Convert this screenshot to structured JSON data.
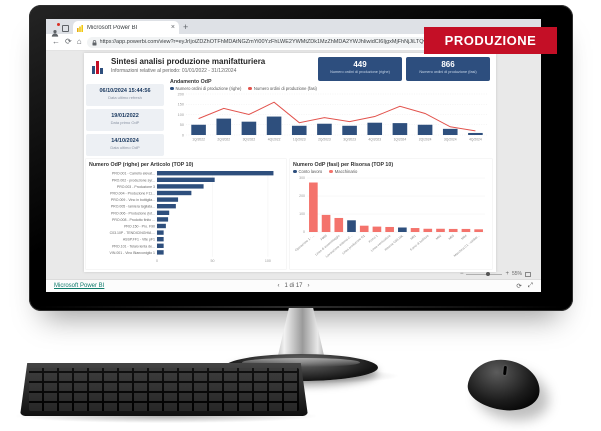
{
  "overlay": {
    "badge": "PRODUZIONE"
  },
  "browser": {
    "tab_title": "Microsoft Power BI",
    "url": "https://app.powerbi.com/view?r=eyJrIjoiZDZhOTFhMDAtNGZmYi00YzFhLWE2YWMtZDk1MzZhMDA2YWJhIiwidCI6IjgxMjFhNjJiLTQwNGEtNDBkZS1hZTZlLTZlMjU1ZDVlZjliNyJ9"
  },
  "icons": {
    "close": "×",
    "add": "+",
    "back": "←",
    "reload": "⟳",
    "home": "⌂",
    "prev": "‹",
    "next": "›",
    "minus": "−",
    "plus": "+",
    "refresh": "⟳",
    "fullscreen": "⤢"
  },
  "viewer": {
    "status_link": "Microsoft Power BI",
    "page_indicator": "1 di 17",
    "zoom_level": "55%"
  },
  "report": {
    "title": "Sintesi analisi produzione manifatturiera",
    "subtitle": "Informazioni relative al periodo: 01/01/2022 - 31/12/2024",
    "kpis": [
      {
        "value": "449",
        "label": "Numero ordini di produzione (righe)"
      },
      {
        "value": "866",
        "label": "Numero ordini di produzione (fasi)"
      }
    ],
    "date_cards": [
      {
        "value": "06/10/2024 15:44:56",
        "label": "Data ultimo refresh"
      },
      {
        "value": "19/01/2022",
        "label": "Data primo OdP"
      },
      {
        "value": "14/10/2024",
        "label": "Data ultimo OdP"
      }
    ],
    "accent_colors": {
      "navy": "#2e4f7d",
      "line_red": "#e2524c",
      "salmon": "#f4736c",
      "banner_red": "#c40f26"
    }
  },
  "chart_data": [
    {
      "type": "bar",
      "title": "Andamento OdP",
      "categories": [
        "1Q/2022",
        "2Q/2022",
        "3Q/2022",
        "4Q/2022",
        "1Q/2023",
        "2Q/2023",
        "3Q/2023",
        "4Q/2023",
        "1Q/2024",
        "2Q/2024",
        "3Q/2024",
        "4Q/2024"
      ],
      "series": [
        {
          "name": "Numero ordini di produzione (righe)",
          "type": "bar",
          "color": "#2e4f7d",
          "values": [
            50,
            80,
            65,
            90,
            45,
            55,
            45,
            60,
            58,
            50,
            30,
            10
          ]
        },
        {
          "name": "Numero ordini di produzione (fasi)",
          "type": "line",
          "color": "#e2524c",
          "values": [
            80,
            130,
            100,
            160,
            60,
            85,
            65,
            90,
            140,
            105,
            40,
            20
          ]
        }
      ],
      "ylim": [
        0,
        200
      ],
      "yticks": [
        0,
        50,
        100,
        150,
        200
      ],
      "grid": true,
      "legend_position": "top"
    },
    {
      "type": "bar",
      "orientation": "horizontal",
      "title": "Numero OdP (righe) per Articolo (TOP 10)",
      "categories": [
        "PRO.001 - Carrello elevat...",
        "PRO.002 - produzione syr...",
        "PRO.003 - Produzione 3",
        "PRO.004 - Produzione F11...",
        "PRO.009 - Vino in bottiglia...",
        "PRO.005 - lamiera tagliata...",
        "PRO.006 - Produzione (lot...",
        "PRO.008 - Prodotto finito ...",
        "PRO.150 - Pro. F90",
        "C03.10P - TENDICINGHIA ...",
        "ASSP.FF1 - Vite pF1",
        "PRO.101 - Telaio lenta de...",
        "VIN.001 - Vino Bianconiglio 1"
      ],
      "values": [
        105,
        52,
        42,
        31,
        19,
        17,
        11,
        10,
        8,
        6,
        6,
        6,
        6
      ],
      "color": "#2e4f7d",
      "xlim": [
        0,
        110
      ],
      "xticks": [
        0,
        50,
        100
      ],
      "grid": true
    },
    {
      "type": "bar",
      "title": "Numero OdP (fasi) per Risorsa (TOP 10)",
      "legend": [
        "Conto lavoro",
        "Macchinario"
      ],
      "colors": {
        "Conto lavoro": "#2e4f7d",
        "Macchinario": "#f4736c"
      },
      "categories": [
        "Operazione 1 - ...",
        "F009",
        "Linea di assemblaggio",
        "Lavorazione esterna C...",
        "Linea produzione G1",
        "Forno 1",
        "Linea verniciatura",
        "Risorsa C03.10L",
        "M01",
        "Forno di bollitura",
        "M02",
        "M03",
        "M04",
        "Macchina C1 - saldatr..."
      ],
      "values": [
        275,
        95,
        78,
        65,
        35,
        30,
        28,
        25,
        22,
        18,
        18,
        17,
        17,
        15
      ],
      "bar_series": [
        "Macchinario",
        "Macchinario",
        "Macchinario",
        "Conto lavoro",
        "Macchinario",
        "Macchinario",
        "Macchinario",
        "Conto lavoro",
        "Macchinario",
        "Macchinario",
        "Macchinario",
        "Macchinario",
        "Macchinario",
        "Macchinario"
      ],
      "ylim": [
        0,
        300
      ],
      "yticks": [
        0,
        100,
        200,
        300
      ],
      "grid": true,
      "legend_position": "top"
    }
  ]
}
